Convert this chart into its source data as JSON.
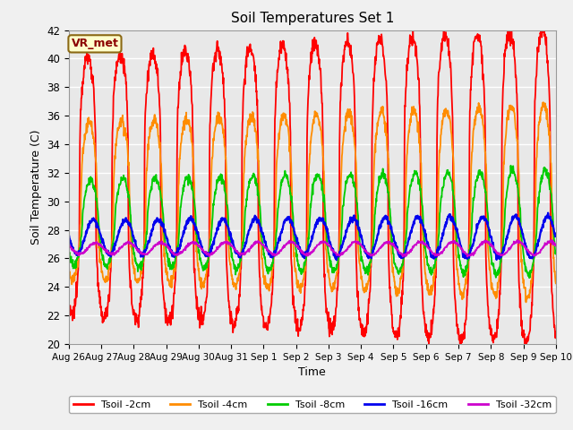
{
  "title": "Soil Temperatures Set 1",
  "xlabel": "Time",
  "ylabel": "Soil Temperature (C)",
  "ylim": [
    20,
    42
  ],
  "background_color": "#e8e8e8",
  "fig_background": "#f0f0f0",
  "grid_color": "white",
  "annotation_text": "VR_met",
  "annotation_bg": "#ffffcc",
  "annotation_text_color": "#8B0000",
  "annotation_border": "#8B6914",
  "series_colors": {
    "Tsoil -2cm": "#ff0000",
    "Tsoil -4cm": "#ff8c00",
    "Tsoil -8cm": "#00cc00",
    "Tsoil -16cm": "#0000ee",
    "Tsoil -32cm": "#cc00cc"
  },
  "x_tick_labels": [
    "Aug 26",
    "Aug 27",
    "Aug 28",
    "Aug 29",
    "Aug 30",
    "Aug 31",
    "Sep 1",
    "Sep 2",
    "Sep 3",
    "Sep 4",
    "Sep 5",
    "Sep 6",
    "Sep 7",
    "Sep 8",
    "Sep 9",
    "Sep 10"
  ],
  "series_order": [
    "Tsoil -2cm",
    "Tsoil -4cm",
    "Tsoil -8cm",
    "Tsoil -16cm",
    "Tsoil -32cm"
  ],
  "linewidths": [
    1.3,
    1.3,
    1.3,
    1.6,
    1.3
  ],
  "n_points": 1440,
  "series_params": {
    "Tsoil -2cm": {
      "amplitude": 9.0,
      "mean": 31.0,
      "phase_hr": 14,
      "noise": 0.3,
      "sharpness": 3.0
    },
    "Tsoil -4cm": {
      "amplitude": 5.5,
      "mean": 30.0,
      "phase_hr": 15,
      "noise": 0.2,
      "sharpness": 2.0
    },
    "Tsoil -8cm": {
      "amplitude": 3.0,
      "mean": 28.5,
      "phase_hr": 16,
      "noise": 0.15,
      "sharpness": 1.5
    },
    "Tsoil -16cm": {
      "amplitude": 1.2,
      "mean": 27.5,
      "phase_hr": 18,
      "noise": 0.1,
      "sharpness": 1.0
    },
    "Tsoil -32cm": {
      "amplitude": 0.4,
      "mean": 26.7,
      "phase_hr": 20,
      "noise": 0.05,
      "sharpness": 1.0
    }
  }
}
